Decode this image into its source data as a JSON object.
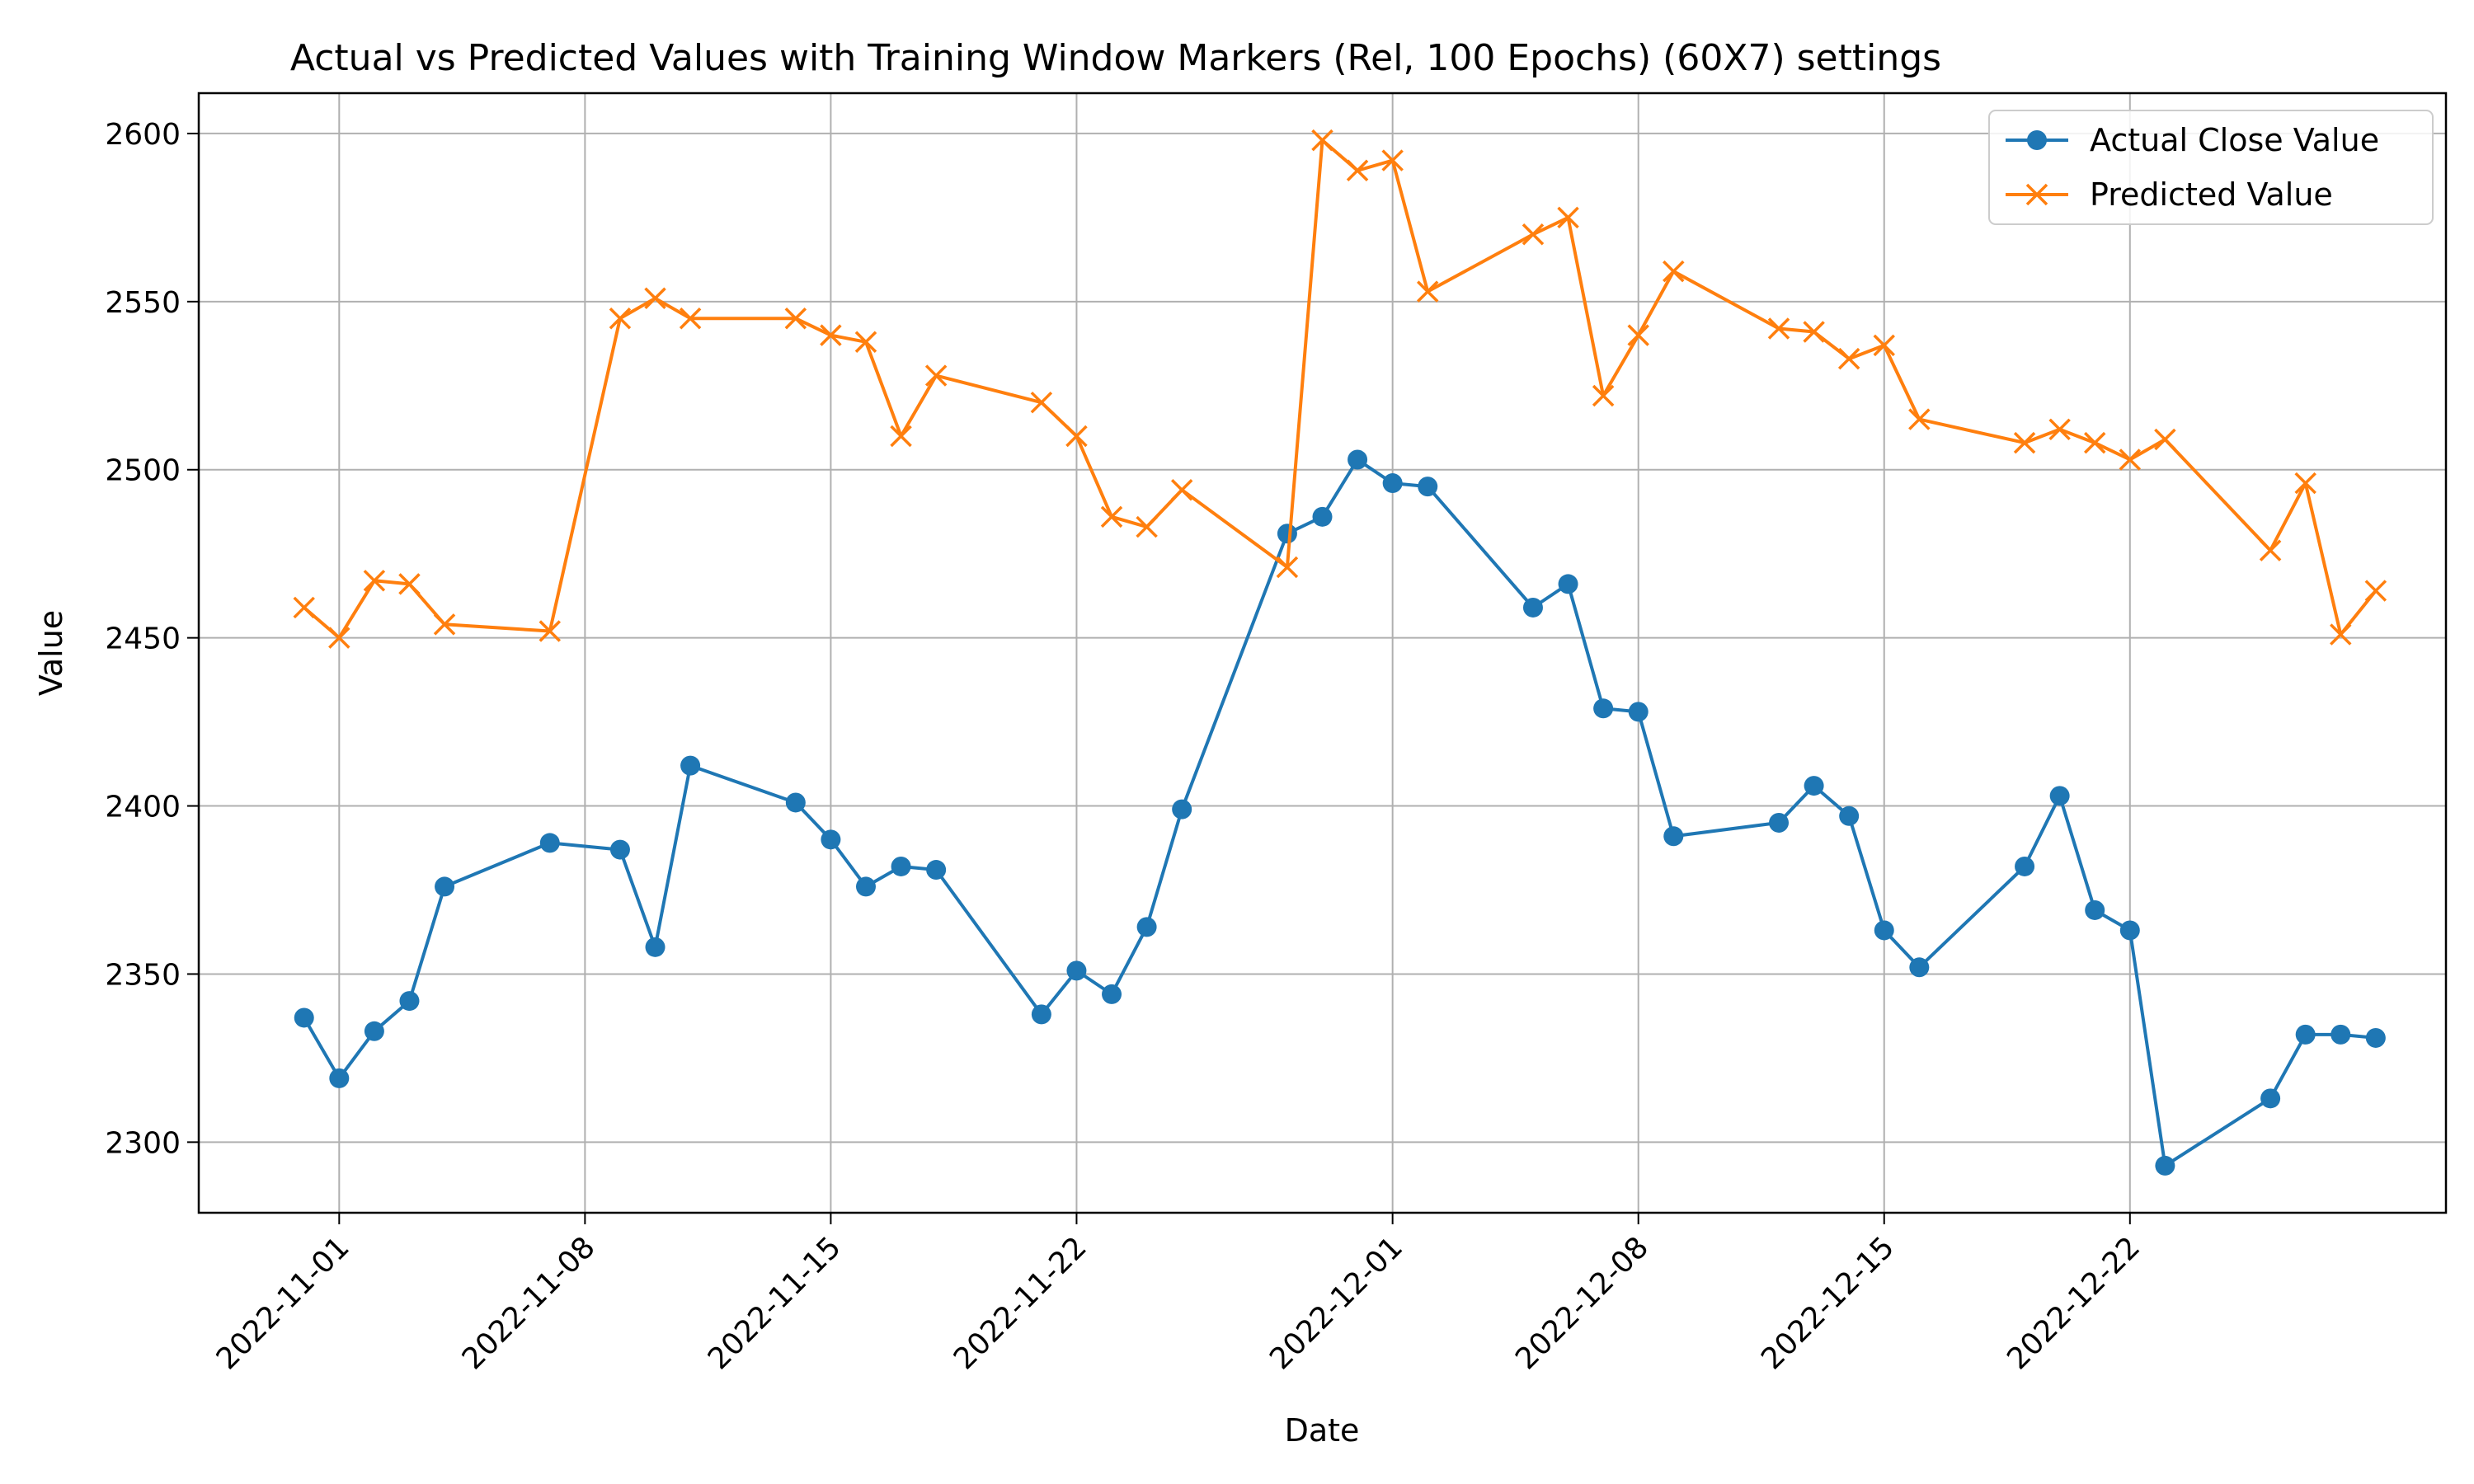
{
  "chart_data": {
    "type": "line",
    "title": "Actual vs Predicted Values with Training Window Markers (Rel, 100 Epochs) (60X7) settings",
    "xlabel": "Date",
    "ylabel": "Value",
    "x_tick_labels": [
      "2022-11-01",
      "2022-11-08",
      "2022-11-15",
      "2022-11-22",
      "2022-12-01",
      "2022-12-08",
      "2022-12-15",
      "2022-12-22"
    ],
    "y_ticks": [
      2300,
      2350,
      2400,
      2450,
      2500,
      2550,
      2600
    ],
    "xlim": [
      "2022-10-28",
      "2022-12-31"
    ],
    "ylim": [
      2279,
      2612
    ],
    "grid": true,
    "legend_position": "top-right",
    "x": [
      "2022-10-31",
      "2022-11-01",
      "2022-11-02",
      "2022-11-03",
      "2022-11-04",
      "2022-11-07",
      "2022-11-09",
      "2022-11-10",
      "2022-11-11",
      "2022-11-14",
      "2022-11-15",
      "2022-11-16",
      "2022-11-17",
      "2022-11-18",
      "2022-11-21",
      "2022-11-22",
      "2022-11-23",
      "2022-11-24",
      "2022-11-25",
      "2022-11-28",
      "2022-11-29",
      "2022-11-30",
      "2022-12-01",
      "2022-12-02",
      "2022-12-05",
      "2022-12-06",
      "2022-12-07",
      "2022-12-08",
      "2022-12-09",
      "2022-12-12",
      "2022-12-13",
      "2022-12-14",
      "2022-12-15",
      "2022-12-16",
      "2022-12-19",
      "2022-12-20",
      "2022-12-21",
      "2022-12-22",
      "2022-12-23",
      "2022-12-26",
      "2022-12-27",
      "2022-12-28",
      "2022-12-29"
    ],
    "series": [
      {
        "name": "Actual Close Value",
        "color": "#1f77b4",
        "marker": "circle",
        "values": [
          2337,
          2319,
          2333,
          2342,
          2376,
          2389,
          2387,
          2358,
          2412,
          2401,
          2390,
          2376,
          2382,
          2381,
          2338,
          2351,
          2344,
          2364,
          2399,
          2481,
          2486,
          2503,
          2496,
          2495,
          2459,
          2466,
          2429,
          2428,
          2391,
          2395,
          2406,
          2397,
          2363,
          2352,
          2382,
          2403,
          2369,
          2363,
          2293,
          2313,
          2332,
          2332,
          2331
        ]
      },
      {
        "name": "Predicted Value",
        "color": "#ff7f0e",
        "marker": "x",
        "values": [
          2459,
          2450,
          2467,
          2466,
          2454,
          2452,
          2545,
          2551,
          2545,
          2545,
          2540,
          2538,
          2510,
          2528,
          2520,
          2510,
          2486,
          2483,
          2494,
          2471,
          2598,
          2589,
          2592,
          2553,
          2570,
          2575,
          2522,
          2540,
          2559,
          2542,
          2541,
          2533,
          2537,
          2515,
          2508,
          2512,
          2508,
          2503,
          2509,
          2476,
          2496,
          2451,
          2464
        ]
      }
    ]
  }
}
